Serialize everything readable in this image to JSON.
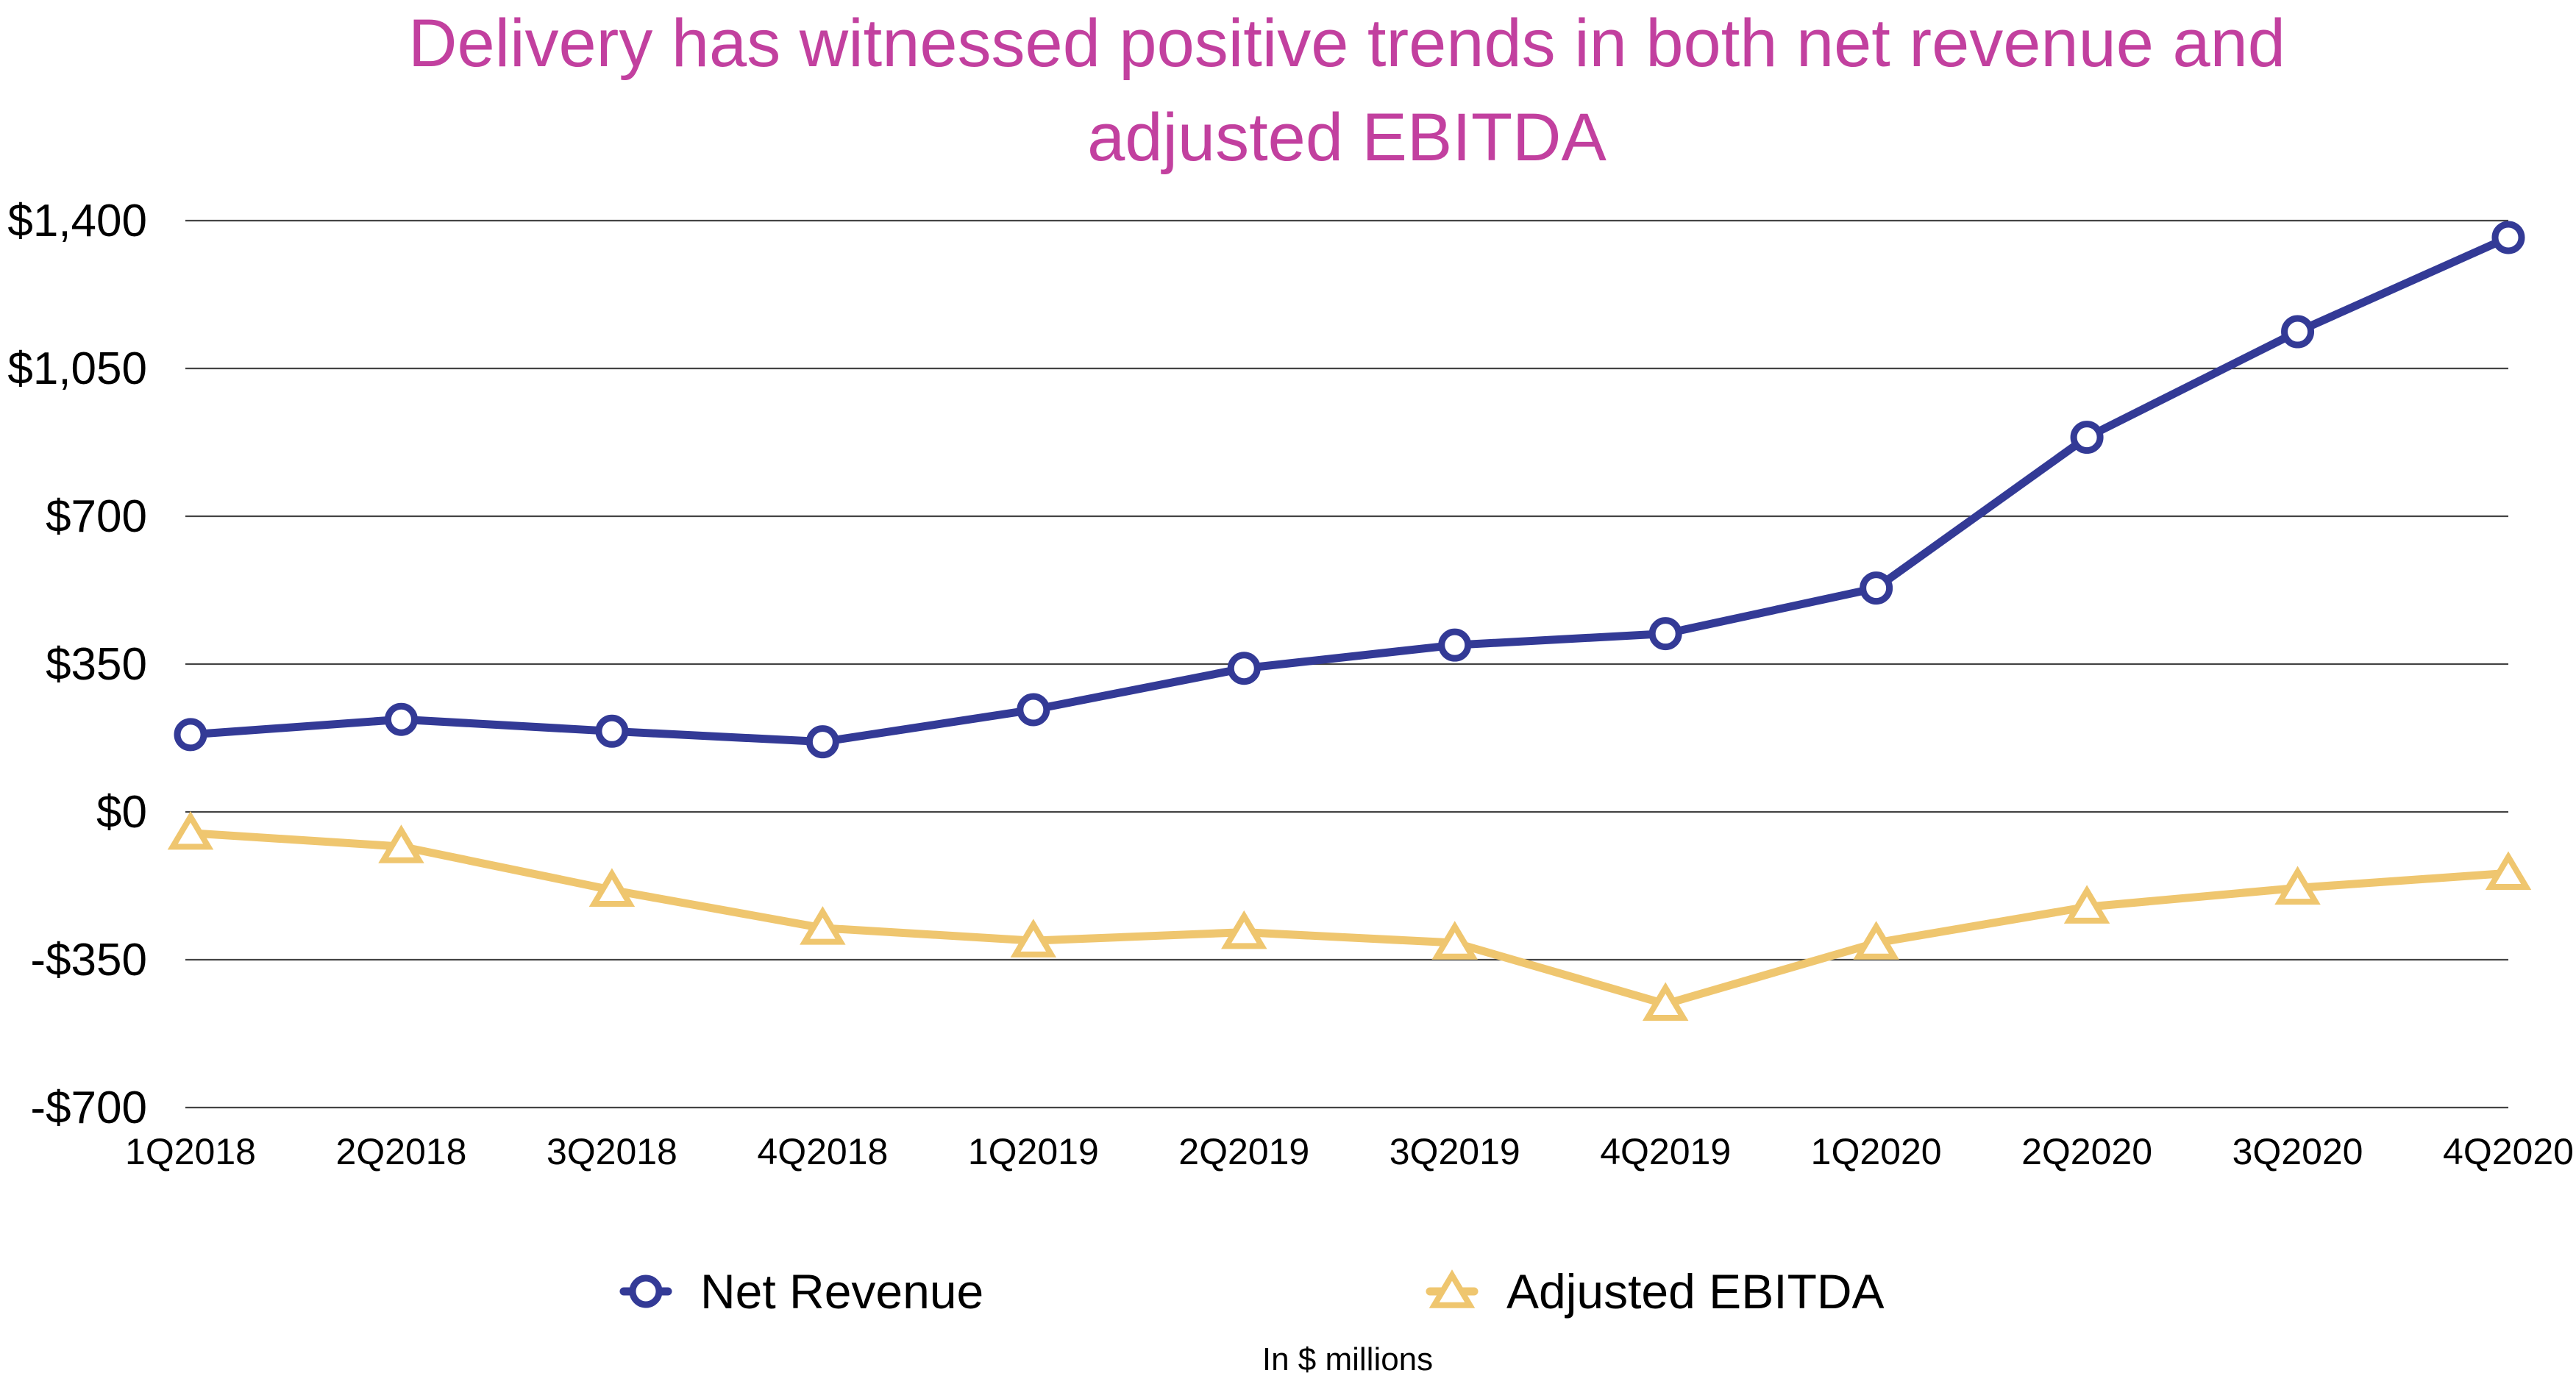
{
  "chart_data": {
    "type": "line",
    "title_lines": [
      "Delivery has witnessed positive trends in both net revenue and",
      "adjusted EBITDA"
    ],
    "categories": [
      "1Q2018",
      "2Q2018",
      "3Q2018",
      "4Q2018",
      "1Q2019",
      "2Q2019",
      "3Q2019",
      "4Q2019",
      "1Q2020",
      "2Q2020",
      "3Q2020",
      "4Q2020"
    ],
    "y_ticks": [
      -700,
      -350,
      0,
      350,
      700,
      1050,
      1400
    ],
    "y_tick_labels": [
      "-$700",
      "-$350",
      "$0",
      "$350",
      "$700",
      "$1,050",
      "$1,400"
    ],
    "ylim": [
      -700,
      1400
    ],
    "grid": true,
    "legend_position": "bottom",
    "series": [
      {
        "name": "Net Revenue",
        "color": "#333A96",
        "marker": "circle",
        "values": [
          183,
          219,
          191,
          166,
          242,
          340,
          395,
          422,
          530,
          887,
          1137,
          1360
        ]
      },
      {
        "name": "Adjusted EBITDA",
        "color": "#EFC66F",
        "marker": "triangle",
        "values": [
          -50,
          -82,
          -185,
          -275,
          -305,
          -285,
          -310,
          -455,
          -310,
          -225,
          -180,
          -145
        ]
      }
    ],
    "note": "In $ millions"
  }
}
